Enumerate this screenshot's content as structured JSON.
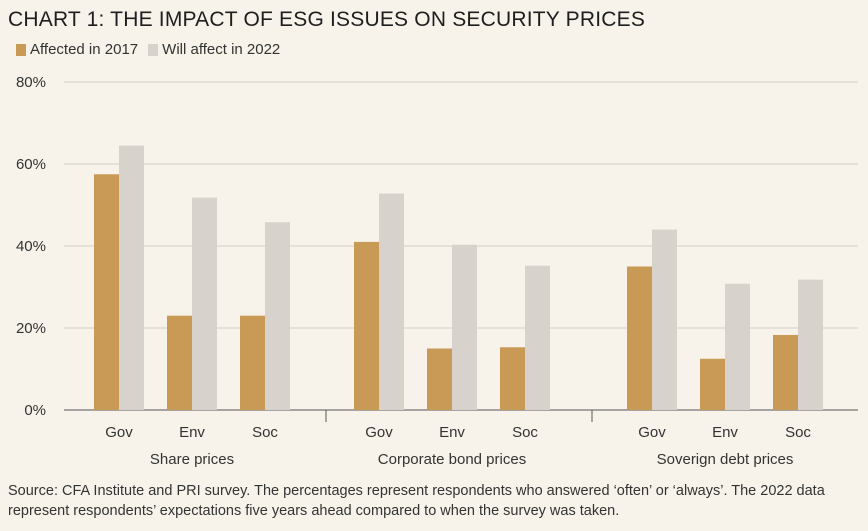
{
  "chart_data": {
    "type": "bar",
    "title": "CHART 1: THE IMPACT OF ESG ISSUES ON SECURITY PRICES",
    "groups": [
      "Share prices",
      "Corporate bond prices",
      "Soverign debt prices"
    ],
    "categories": [
      "Gov",
      "Env",
      "Soc"
    ],
    "series": [
      {
        "name": "Affected in 2017",
        "color": "#c89a55",
        "values": [
          [
            57.5,
            23,
            23
          ],
          [
            41,
            15,
            15.3
          ],
          [
            35,
            12.5,
            18.3
          ]
        ]
      },
      {
        "name": "Will affect in 2022",
        "color": "#d8d2cc",
        "values": [
          [
            64.5,
            51.8,
            45.8
          ],
          [
            52.8,
            40.3,
            35.2
          ],
          [
            44,
            30.8,
            31.8
          ]
        ]
      }
    ],
    "ylim": [
      0,
      80
    ],
    "yticks": [
      0,
      20,
      40,
      60,
      80
    ],
    "ytick_labels": [
      "0%",
      "20%",
      "40%",
      "60%",
      "80%"
    ],
    "xlabel": "",
    "ylabel": "",
    "grid": true
  },
  "source_text": "Source: CFA Institute and PRI survey. The percentages represent respondents who answered ‘often’ or ‘always’. The 2022 data represent respondents’ expectations five years ahead compared to when the survey was taken."
}
